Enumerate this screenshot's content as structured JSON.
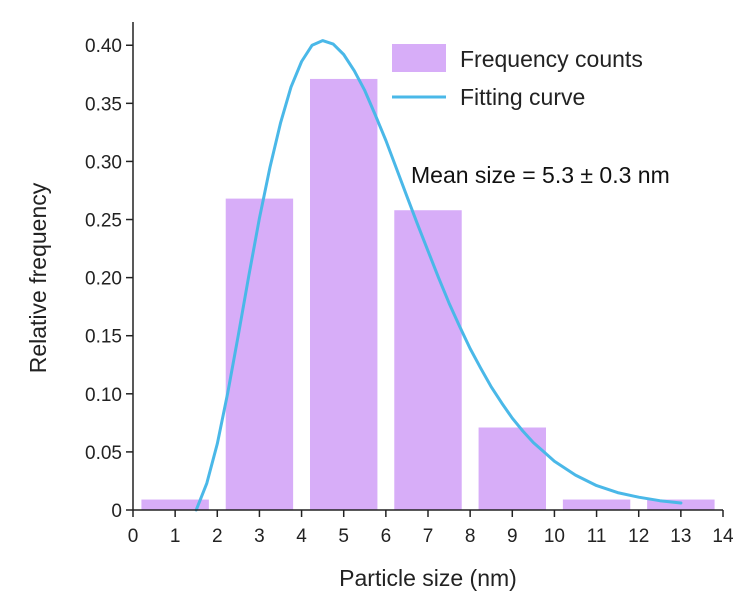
{
  "chart_data": {
    "type": "bar",
    "x_tick_labels": [
      "0",
      "1",
      "2",
      "3",
      "4",
      "5",
      "6",
      "7",
      "8",
      "9",
      "10",
      "11",
      "12",
      "13",
      "14"
    ],
    "y_tick_labels": [
      "0",
      "0.05",
      "0.10",
      "0.15",
      "0.20",
      "0.25",
      "0.30",
      "0.35",
      "0.40"
    ],
    "xlim": [
      0,
      14
    ],
    "ylim": [
      0,
      0.42
    ],
    "xlabel": "Particle size (nm)",
    "ylabel": "Relative frequency",
    "bars": [
      {
        "x": 1,
        "value": 0.009
      },
      {
        "x": 3,
        "value": 0.268
      },
      {
        "x": 5,
        "value": 0.371
      },
      {
        "x": 7,
        "value": 0.258
      },
      {
        "x": 9,
        "value": 0.071
      },
      {
        "x": 11,
        "value": 0.009
      },
      {
        "x": 13,
        "value": 0.009
      }
    ],
    "bar_width": 1.6,
    "curve": {
      "x": [
        1.5,
        1.75,
        2,
        2.25,
        2.5,
        2.75,
        3,
        3.25,
        3.5,
        3.75,
        4,
        4.25,
        4.5,
        4.75,
        5,
        5.25,
        5.5,
        5.75,
        6,
        6.25,
        6.5,
        6.75,
        7,
        7.25,
        7.5,
        7.75,
        8,
        8.25,
        8.5,
        8.75,
        9,
        9.25,
        9.5,
        9.75,
        10,
        10.5,
        11,
        11.5,
        12,
        12.5,
        13
      ],
      "y": [
        0.0,
        0.023,
        0.057,
        0.101,
        0.151,
        0.202,
        0.251,
        0.295,
        0.333,
        0.364,
        0.386,
        0.4,
        0.404,
        0.401,
        0.392,
        0.378,
        0.361,
        0.34,
        0.318,
        0.294,
        0.27,
        0.246,
        0.223,
        0.2,
        0.178,
        0.158,
        0.139,
        0.122,
        0.106,
        0.092,
        0.079,
        0.068,
        0.058,
        0.05,
        0.042,
        0.03,
        0.021,
        0.015,
        0.011,
        0.008,
        0.006
      ]
    },
    "legend": [
      {
        "label": "Frequency counts",
        "type": "bar"
      },
      {
        "label": "Fitting curve",
        "type": "line"
      }
    ],
    "legend_position": "top-right",
    "annotation": "Mean size = 5.3 ± 0.3 nm",
    "grid": false,
    "colors": {
      "bar": "#d7adf8",
      "curve": "#4ab8e8",
      "axis": "#222222"
    }
  }
}
